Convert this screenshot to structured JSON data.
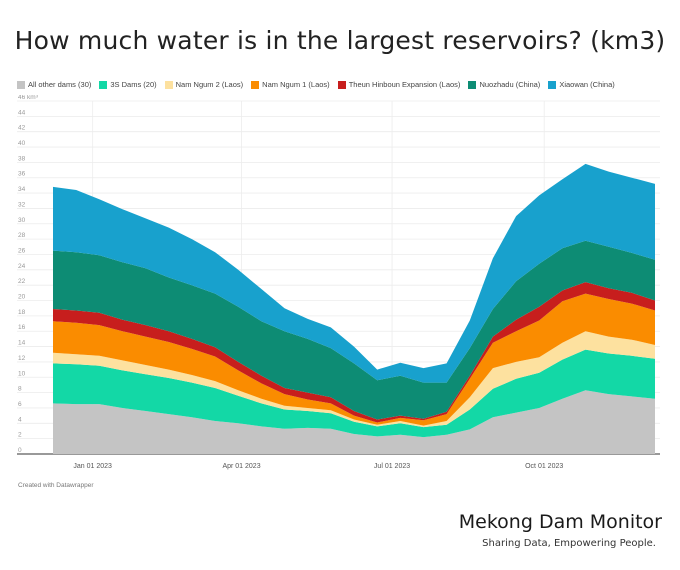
{
  "chart_data": {
    "type": "area",
    "stacked": true,
    "title": "How much water is in the largest reservoirs? (km3)",
    "xlabel": "",
    "ylabel": "",
    "y_unit_label": "46 km³",
    "ylim": [
      0,
      46
    ],
    "yticks": [
      0,
      2,
      4,
      6,
      8,
      10,
      12,
      14,
      16,
      18,
      20,
      22,
      24,
      26,
      28,
      30,
      32,
      34,
      36,
      38,
      40,
      42,
      44,
      46
    ],
    "xticks": [
      {
        "label": "Jan 01 2023",
        "date": "2023-01-01"
      },
      {
        "label": "Apr 01 2023",
        "date": "2023-04-01"
      },
      {
        "label": "Jul 01 2023",
        "date": "2023-07-01"
      },
      {
        "label": "Oct 01 2023",
        "date": "2023-10-01"
      }
    ],
    "xlim": [
      "2022-12-08",
      "2023-12-07"
    ],
    "grid": true,
    "legend_position": "top-left",
    "x": [
      "2022-12-08",
      "2022-12-22",
      "2023-01-05",
      "2023-01-19",
      "2023-02-02",
      "2023-02-16",
      "2023-03-02",
      "2023-03-16",
      "2023-03-30",
      "2023-04-13",
      "2023-04-27",
      "2023-05-11",
      "2023-05-25",
      "2023-06-08",
      "2023-06-22",
      "2023-07-06",
      "2023-07-20",
      "2023-08-03",
      "2023-08-17",
      "2023-08-31",
      "2023-09-14",
      "2023-09-28",
      "2023-10-12",
      "2023-10-26",
      "2023-11-09",
      "2023-11-23",
      "2023-12-07"
    ],
    "series": [
      {
        "name": "All other dams (30)",
        "color": "#c4c4c4",
        "values": [
          6.6,
          6.5,
          6.5,
          6.0,
          5.6,
          5.2,
          4.8,
          4.3,
          4.0,
          3.6,
          3.3,
          3.4,
          3.3,
          2.6,
          2.3,
          2.5,
          2.2,
          2.5,
          3.2,
          4.8,
          5.4,
          6.0,
          7.2,
          8.3,
          7.8,
          7.5,
          7.2
        ]
      },
      {
        "name": "3S Dams (20)",
        "color": "#13d8a6",
        "values": [
          5.2,
          5.2,
          5.0,
          4.9,
          4.8,
          4.7,
          4.5,
          4.3,
          3.6,
          3.0,
          2.5,
          2.2,
          2.0,
          1.6,
          1.3,
          1.5,
          1.3,
          1.3,
          2.6,
          3.7,
          4.4,
          4.6,
          5.1,
          5.3,
          5.3,
          5.3,
          5.2
        ]
      },
      {
        "name": "Nam Ngum 2 (Laos)",
        "color": "#fde19f",
        "values": [
          1.4,
          1.3,
          1.3,
          1.3,
          1.2,
          1.1,
          1.0,
          0.9,
          0.7,
          0.6,
          0.5,
          0.4,
          0.4,
          0.3,
          0.2,
          0.3,
          0.2,
          0.5,
          1.6,
          2.7,
          2.2,
          2.0,
          2.2,
          2.4,
          2.2,
          2.1,
          1.8
        ]
      },
      {
        "name": "Nam Ngum 1 (Laos)",
        "color": "#fa8c00",
        "values": [
          4.1,
          4.1,
          4.0,
          3.8,
          3.7,
          3.6,
          3.4,
          3.2,
          2.6,
          2.0,
          1.5,
          1.1,
          0.9,
          0.5,
          0.3,
          0.4,
          0.7,
          0.9,
          2.4,
          3.3,
          4.0,
          4.8,
          5.4,
          4.9,
          4.9,
          4.7,
          4.5
        ]
      },
      {
        "name": "Theun Hinboun Expansion (Laos)",
        "color": "#c71e1d",
        "values": [
          1.6,
          1.6,
          1.6,
          1.5,
          1.5,
          1.4,
          1.3,
          1.2,
          1.1,
          1.0,
          0.8,
          0.9,
          0.8,
          0.6,
          0.4,
          0.3,
          0.2,
          0.3,
          0.4,
          0.8,
          1.5,
          1.8,
          1.4,
          1.5,
          1.4,
          1.4,
          1.3
        ]
      },
      {
        "name": "Nuozhadu (China)",
        "color": "#0d8c74",
        "values": [
          7.6,
          7.6,
          7.5,
          7.5,
          7.4,
          7.0,
          7.0,
          7.0,
          7.2,
          7.1,
          7.4,
          7.0,
          6.4,
          6.2,
          5.1,
          5.2,
          4.7,
          3.8,
          3.6,
          3.6,
          5.0,
          5.6,
          5.5,
          5.4,
          5.4,
          5.2,
          5.3
        ]
      },
      {
        "name": "Xiaowan (China)",
        "color": "#18a1cd",
        "values": [
          8.3,
          8.1,
          7.3,
          6.9,
          6.5,
          6.5,
          6.0,
          5.4,
          4.8,
          4.2,
          3.0,
          2.6,
          2.7,
          2.2,
          1.4,
          1.7,
          1.9,
          2.5,
          3.6,
          6.6,
          8.5,
          8.9,
          9.0,
          10.0,
          9.8,
          9.8,
          9.9
        ]
      }
    ]
  },
  "footer": {
    "credit": "Created with Datawrapper",
    "brand": "Mekong Dam Monitor",
    "tagline": "Sharing Data, Empowering People."
  }
}
